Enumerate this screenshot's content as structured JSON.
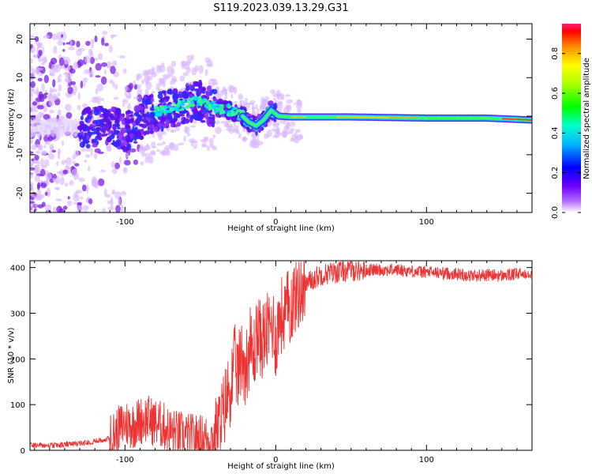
{
  "title": "S119.2023.039.13.29.G31",
  "chart_data": [
    {
      "type": "heatmap",
      "xlabel": "Height of straight line (km)",
      "ylabel": "Frequency (Hz)",
      "xlim": [
        -163,
        170
      ],
      "ylim": [
        -25,
        24
      ],
      "x_ticks": [
        -100,
        0,
        100
      ],
      "y_ticks": [
        -20,
        -10,
        0,
        10,
        20
      ],
      "grid": false,
      "ridge_frequency_hz": [
        {
          "x": -125,
          "y": -3
        },
        {
          "x": -110,
          "y": -2
        },
        {
          "x": -100,
          "y": -4
        },
        {
          "x": -90,
          "y": -1
        },
        {
          "x": -80,
          "y": 1
        },
        {
          "x": -70,
          "y": 2
        },
        {
          "x": -60,
          "y": 3
        },
        {
          "x": -52,
          "y": 4
        },
        {
          "x": -45,
          "y": 3
        },
        {
          "x": -38,
          "y": 2
        },
        {
          "x": -30,
          "y": 1.5
        },
        {
          "x": -22,
          "y": 0
        },
        {
          "x": -18,
          "y": -1.5
        },
        {
          "x": -13,
          "y": -2.5
        },
        {
          "x": -8,
          "y": -1
        },
        {
          "x": -3,
          "y": 1.5
        },
        {
          "x": 2,
          "y": 0
        },
        {
          "x": 10,
          "y": -0.2
        },
        {
          "x": 50,
          "y": -0.2
        },
        {
          "x": 100,
          "y": -0.5
        },
        {
          "x": 140,
          "y": -0.5
        },
        {
          "x": 170,
          "y": -1
        }
      ],
      "colorbar": {
        "label": "Normalized spectral amplitude",
        "range": [
          0,
          0.95
        ],
        "ticks": [
          "0.0",
          "0.2",
          "0.4",
          "0.6",
          "0.8"
        ]
      }
    },
    {
      "type": "line",
      "xlabel": "Height of straight line (km)",
      "ylabel": "SNR (10 * v/v)",
      "xlim": [
        -163,
        170
      ],
      "ylim": [
        0,
        415
      ],
      "x_ticks": [
        -100,
        0,
        100
      ],
      "y_ticks": [
        0,
        100,
        200,
        300,
        400
      ],
      "grid": false,
      "color": "#ee3333",
      "series": [
        {
          "x": [
            -163,
            -150,
            -140,
            -130,
            -120,
            -110,
            -100,
            -95,
            -90,
            -85,
            -80,
            -75,
            -70,
            -65,
            -60,
            -55,
            -50,
            -45,
            -40,
            -35,
            -32,
            -30,
            -27,
            -25,
            -22,
            -20,
            -17,
            -15,
            -12,
            -10,
            -7,
            -5,
            -2,
            0,
            3,
            5,
            8,
            10,
            13,
            15,
            20,
            25,
            30,
            40,
            50,
            60,
            70,
            80,
            90,
            100,
            110,
            120,
            130,
            140,
            150,
            160,
            170
          ],
          "values": [
            12,
            10,
            12,
            15,
            20,
            25,
            60,
            55,
            65,
            70,
            60,
            55,
            40,
            35,
            30,
            28,
            26,
            25,
            30,
            80,
            120,
            140,
            190,
            170,
            210,
            180,
            230,
            200,
            260,
            240,
            250,
            260,
            280,
            240,
            300,
            290,
            310,
            320,
            340,
            350,
            365,
            375,
            385,
            390,
            395,
            395,
            395,
            395,
            392,
            390,
            388,
            386,
            382,
            384,
            382,
            385,
            390
          ]
        }
      ]
    }
  ]
}
